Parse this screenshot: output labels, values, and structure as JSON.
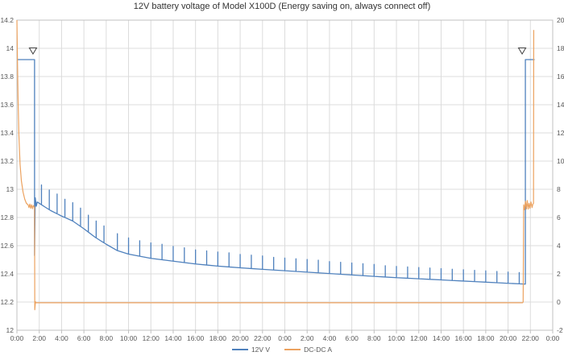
{
  "chart_data": {
    "type": "line",
    "title": "12V battery voltage of Model X100D (Energy saving on, always connect off)",
    "grid": true,
    "legend_position": "bottom-center",
    "x_axis": {
      "unit": "time",
      "hours_span": 48,
      "tick_interval_hours": 2,
      "labels": [
        "0:00",
        "2:00",
        "4:00",
        "6:00",
        "8:00",
        "10:00",
        "12:00",
        "14:00",
        "16:00",
        "18:00",
        "20:00",
        "22:00",
        "0:00",
        "2:00",
        "4:00",
        "6:00",
        "8:00",
        "10:00",
        "12:00",
        "14:00",
        "16:00",
        "18:00",
        "20:00",
        "22:00",
        "0:00"
      ]
    },
    "y_left": {
      "min": 12,
      "max": 14.2,
      "step": 0.2,
      "ticks": [
        "14.2",
        "14",
        "13.8",
        "13.6",
        "13.4",
        "13.2",
        "13",
        "12.8",
        "12.6",
        "12.4",
        "12.2",
        "12"
      ]
    },
    "y_right": {
      "min": -2,
      "max": 20,
      "step": 2,
      "ticks": [
        "20",
        "18",
        "16",
        "14",
        "12",
        "10",
        "8",
        "6",
        "4",
        "2",
        "0",
        "-2"
      ]
    },
    "series": [
      {
        "name": "12V V",
        "axis": "left",
        "plateau_start": {
          "t0": 0,
          "t1": 1.58,
          "v": 13.92
        },
        "drop": [
          [
            1.58,
            12.53
          ],
          [
            1.64,
            12.94
          ],
          [
            1.74,
            12.88
          ],
          [
            1.82,
            12.91
          ]
        ],
        "base": [
          [
            1.82,
            12.91
          ],
          [
            2.5,
            12.875
          ],
          [
            3,
            12.85
          ],
          [
            4,
            12.81
          ],
          [
            5,
            12.775
          ],
          [
            6,
            12.72
          ],
          [
            7,
            12.66
          ],
          [
            8,
            12.61
          ],
          [
            9,
            12.565
          ],
          [
            10,
            12.54
          ],
          [
            11,
            12.525
          ],
          [
            12,
            12.51
          ],
          [
            13,
            12.5
          ],
          [
            14,
            12.49
          ],
          [
            15,
            12.48
          ],
          [
            16,
            12.47
          ],
          [
            18,
            12.455
          ],
          [
            20,
            12.443
          ],
          [
            22,
            12.432
          ],
          [
            24,
            12.422
          ],
          [
            26,
            12.412
          ],
          [
            28,
            12.402
          ],
          [
            30,
            12.392
          ],
          [
            32,
            12.382
          ],
          [
            34,
            12.373
          ],
          [
            36,
            12.365
          ],
          [
            38,
            12.357
          ],
          [
            40,
            12.349
          ],
          [
            42,
            12.341
          ],
          [
            44,
            12.333
          ],
          [
            45.55,
            12.327
          ]
        ],
        "spikes": [
          [
            2.2,
            0.14
          ],
          [
            2.9,
            0.14
          ],
          [
            3.6,
            0.14
          ],
          [
            4.3,
            0.13
          ],
          [
            5.0,
            0.13
          ],
          [
            5.7,
            0.13
          ],
          [
            6.4,
            0.12
          ],
          [
            7.1,
            0.12
          ],
          [
            7.8,
            0.12
          ],
          [
            9,
            0.12
          ],
          [
            10,
            0.115
          ],
          [
            11,
            0.11
          ],
          [
            12,
            0.11
          ],
          [
            13,
            0.11
          ],
          [
            14,
            0.105
          ],
          [
            15,
            0.105
          ],
          [
            16,
            0.1
          ],
          [
            17,
            0.1
          ],
          [
            18,
            0.1
          ],
          [
            19,
            0.1
          ],
          [
            20,
            0.095
          ],
          [
            21,
            0.095
          ],
          [
            22,
            0.095
          ],
          [
            23,
            0.09
          ],
          [
            24,
            0.09
          ],
          [
            25,
            0.09
          ],
          [
            26,
            0.09
          ],
          [
            27,
            0.09
          ],
          [
            28,
            0.085
          ],
          [
            29,
            0.085
          ],
          [
            30,
            0.085
          ],
          [
            31,
            0.085
          ],
          [
            32,
            0.085
          ],
          [
            33,
            0.08
          ],
          [
            34,
            0.08
          ],
          [
            35,
            0.08
          ],
          [
            36,
            0.08
          ],
          [
            37,
            0.08
          ],
          [
            38,
            0.08
          ],
          [
            39,
            0.08
          ],
          [
            40,
            0.08
          ],
          [
            41,
            0.08
          ],
          [
            42,
            0.08
          ],
          [
            43,
            0.08
          ],
          [
            44,
            0.08
          ],
          [
            45,
            0.08
          ]
        ],
        "plateau_end": {
          "t0": 45.55,
          "t1": 46.38,
          "v": 13.92
        }
      },
      {
        "name": "DC-DC A",
        "axis": "right",
        "points": [
          [
            0,
            20
          ],
          [
            0.05,
            17
          ],
          [
            0.1,
            14.5
          ],
          [
            0.18,
            11.8
          ],
          [
            0.28,
            9.8
          ],
          [
            0.4,
            8.6
          ],
          [
            0.55,
            7.8
          ],
          [
            0.7,
            7.3
          ],
          [
            0.85,
            7.0
          ],
          [
            1.0,
            6.9
          ],
          [
            1.08,
            6.7
          ],
          [
            1.16,
            6.95
          ],
          [
            1.24,
            6.65
          ],
          [
            1.32,
            6.9
          ],
          [
            1.4,
            6.62
          ],
          [
            1.48,
            6.85
          ],
          [
            1.58,
            6.7
          ],
          [
            1.6,
            -0.55
          ],
          [
            1.66,
            0.02
          ],
          [
            1.72,
            -0.05
          ],
          [
            45.3,
            -0.05
          ],
          [
            45.35,
            0.0
          ],
          [
            45.4,
            6.9
          ],
          [
            45.48,
            6.55
          ],
          [
            45.56,
            7.15
          ],
          [
            45.64,
            6.6
          ],
          [
            45.72,
            7.2
          ],
          [
            45.8,
            6.6
          ],
          [
            45.88,
            7.0
          ],
          [
            45.96,
            6.65
          ],
          [
            46.05,
            7.1
          ],
          [
            46.15,
            6.7
          ],
          [
            46.22,
            6.95
          ],
          [
            46.28,
            7.0
          ],
          [
            46.3,
            19.3
          ]
        ]
      }
    ],
    "annotations": {
      "markers": [
        {
          "shape": "triangle-down",
          "t": 1.44,
          "v": 13.96
        },
        {
          "shape": "triangle-down",
          "t": 45.26,
          "v": 13.96
        }
      ]
    },
    "colors": {
      "series_12v_v": "#4f81bd",
      "series_dc_dc_a": "#eca25f",
      "grid": "#dcdcdc",
      "border": "#c0c0c0",
      "labels": "#595959",
      "marker_outline": "#404040"
    }
  }
}
